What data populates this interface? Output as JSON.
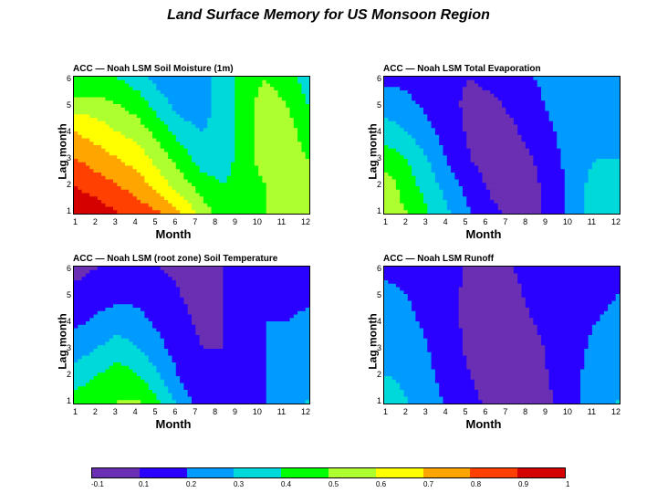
{
  "title": "Land Surface Memory for US Monsoon Region",
  "xlabel": "Month",
  "ylabel": "Lag month",
  "x_ticks": [
    "1",
    "2",
    "3",
    "4",
    "5",
    "6",
    "7",
    "8",
    "9",
    "10",
    "11",
    "12"
  ],
  "y_ticks": [
    "1",
    "2",
    "3",
    "4",
    "5",
    "6"
  ],
  "y_range": [
    1,
    6
  ],
  "x_range": [
    1,
    12
  ],
  "colorscale": {
    "values": [
      "-0.1",
      "0.1",
      "0.2",
      "0.3",
      "0.4",
      "0.5",
      "0.6",
      "0.7",
      "0.8",
      "0.9",
      "1"
    ],
    "colors": [
      "#6b2fb3",
      "#2a00ff",
      "#009bff",
      "#00d9d9",
      "#00ff00",
      "#adff2f",
      "#ffff00",
      "#ffa500",
      "#ff4000",
      "#d50000"
    ]
  },
  "panels": [
    {
      "id": "a",
      "title": "ACC — Noah LSM Soil Moisture (1m)",
      "field_type": "high_diagonal",
      "rows": 6,
      "cols": 12,
      "data": [
        [
          0.95,
          0.95,
          0.9,
          0.85,
          0.8,
          0.7,
          0.55,
          0.45,
          0.45,
          0.5,
          0.55,
          0.55
        ],
        [
          0.9,
          0.85,
          0.8,
          0.75,
          0.65,
          0.55,
          0.45,
          0.4,
          0.45,
          0.5,
          0.55,
          0.55
        ],
        [
          0.8,
          0.75,
          0.7,
          0.65,
          0.55,
          0.45,
          0.35,
          0.35,
          0.45,
          0.55,
          0.55,
          0.5
        ],
        [
          0.7,
          0.65,
          0.6,
          0.55,
          0.45,
          0.35,
          0.3,
          0.35,
          0.45,
          0.55,
          0.55,
          0.45
        ],
        [
          0.55,
          0.55,
          0.5,
          0.45,
          0.35,
          0.25,
          0.25,
          0.35,
          0.45,
          0.55,
          0.5,
          0.4
        ],
        [
          0.4,
          0.4,
          0.4,
          0.35,
          0.25,
          0.2,
          0.25,
          0.35,
          0.45,
          0.5,
          0.45,
          0.35
        ]
      ]
    },
    {
      "id": "b",
      "title": "ACC — Noah LSM Total Evaporation",
      "field_type": "low_center",
      "rows": 6,
      "cols": 12,
      "data": [
        [
          0.55,
          0.5,
          0.4,
          0.3,
          0.2,
          0.12,
          0.08,
          0.08,
          0.15,
          0.25,
          0.35,
          0.35
        ],
        [
          0.55,
          0.45,
          0.35,
          0.25,
          0.15,
          0.08,
          0.05,
          0.08,
          0.15,
          0.25,
          0.35,
          0.35
        ],
        [
          0.45,
          0.4,
          0.3,
          0.18,
          0.1,
          0.05,
          0.05,
          0.1,
          0.18,
          0.25,
          0.3,
          0.3
        ],
        [
          0.35,
          0.3,
          0.22,
          0.15,
          0.08,
          0.05,
          0.08,
          0.15,
          0.2,
          0.25,
          0.28,
          0.25
        ],
        [
          0.25,
          0.22,
          0.18,
          0.12,
          0.08,
          0.08,
          0.12,
          0.18,
          0.22,
          0.25,
          0.25,
          0.22
        ],
        [
          0.18,
          0.18,
          0.15,
          0.12,
          0.1,
          0.12,
          0.15,
          0.2,
          0.22,
          0.22,
          0.22,
          0.2
        ]
      ]
    },
    {
      "id": "c",
      "title": "ACC — Noah LSM (root zone) Soil Temperature",
      "field_type": "mid_wavy",
      "rows": 6,
      "cols": 12,
      "data": [
        [
          0.45,
          0.45,
          0.5,
          0.5,
          0.4,
          0.25,
          0.15,
          0.12,
          0.15,
          0.2,
          0.25,
          0.3
        ],
        [
          0.35,
          0.4,
          0.45,
          0.4,
          0.3,
          0.18,
          0.12,
          0.1,
          0.15,
          0.2,
          0.25,
          0.28
        ],
        [
          0.25,
          0.3,
          0.35,
          0.3,
          0.22,
          0.15,
          0.1,
          0.1,
          0.15,
          0.2,
          0.22,
          0.25
        ],
        [
          0.18,
          0.22,
          0.25,
          0.22,
          0.18,
          0.12,
          0.08,
          0.1,
          0.15,
          0.2,
          0.2,
          0.22
        ],
        [
          0.12,
          0.15,
          0.18,
          0.18,
          0.15,
          0.1,
          0.08,
          0.1,
          0.15,
          0.18,
          0.18,
          0.18
        ],
        [
          0.08,
          0.1,
          0.12,
          0.12,
          0.1,
          0.08,
          0.08,
          0.1,
          0.12,
          0.15,
          0.15,
          0.15
        ]
      ]
    },
    {
      "id": "d",
      "title": "ACC — Noah LSM Runoff",
      "field_type": "low_uniform",
      "rows": 6,
      "cols": 12,
      "data": [
        [
          0.35,
          0.3,
          0.25,
          0.18,
          0.12,
          0.08,
          0.05,
          0.05,
          0.1,
          0.18,
          0.25,
          0.3
        ],
        [
          0.3,
          0.28,
          0.22,
          0.15,
          0.1,
          0.06,
          0.05,
          0.06,
          0.12,
          0.18,
          0.25,
          0.28
        ],
        [
          0.28,
          0.25,
          0.2,
          0.14,
          0.08,
          0.05,
          0.05,
          0.08,
          0.12,
          0.18,
          0.22,
          0.25
        ],
        [
          0.25,
          0.22,
          0.18,
          0.12,
          0.08,
          0.05,
          0.06,
          0.1,
          0.14,
          0.18,
          0.2,
          0.22
        ],
        [
          0.22,
          0.2,
          0.16,
          0.12,
          0.08,
          0.06,
          0.08,
          0.12,
          0.15,
          0.18,
          0.18,
          0.2
        ],
        [
          0.18,
          0.18,
          0.15,
          0.12,
          0.09,
          0.08,
          0.1,
          0.12,
          0.15,
          0.16,
          0.16,
          0.16
        ]
      ]
    }
  ]
}
